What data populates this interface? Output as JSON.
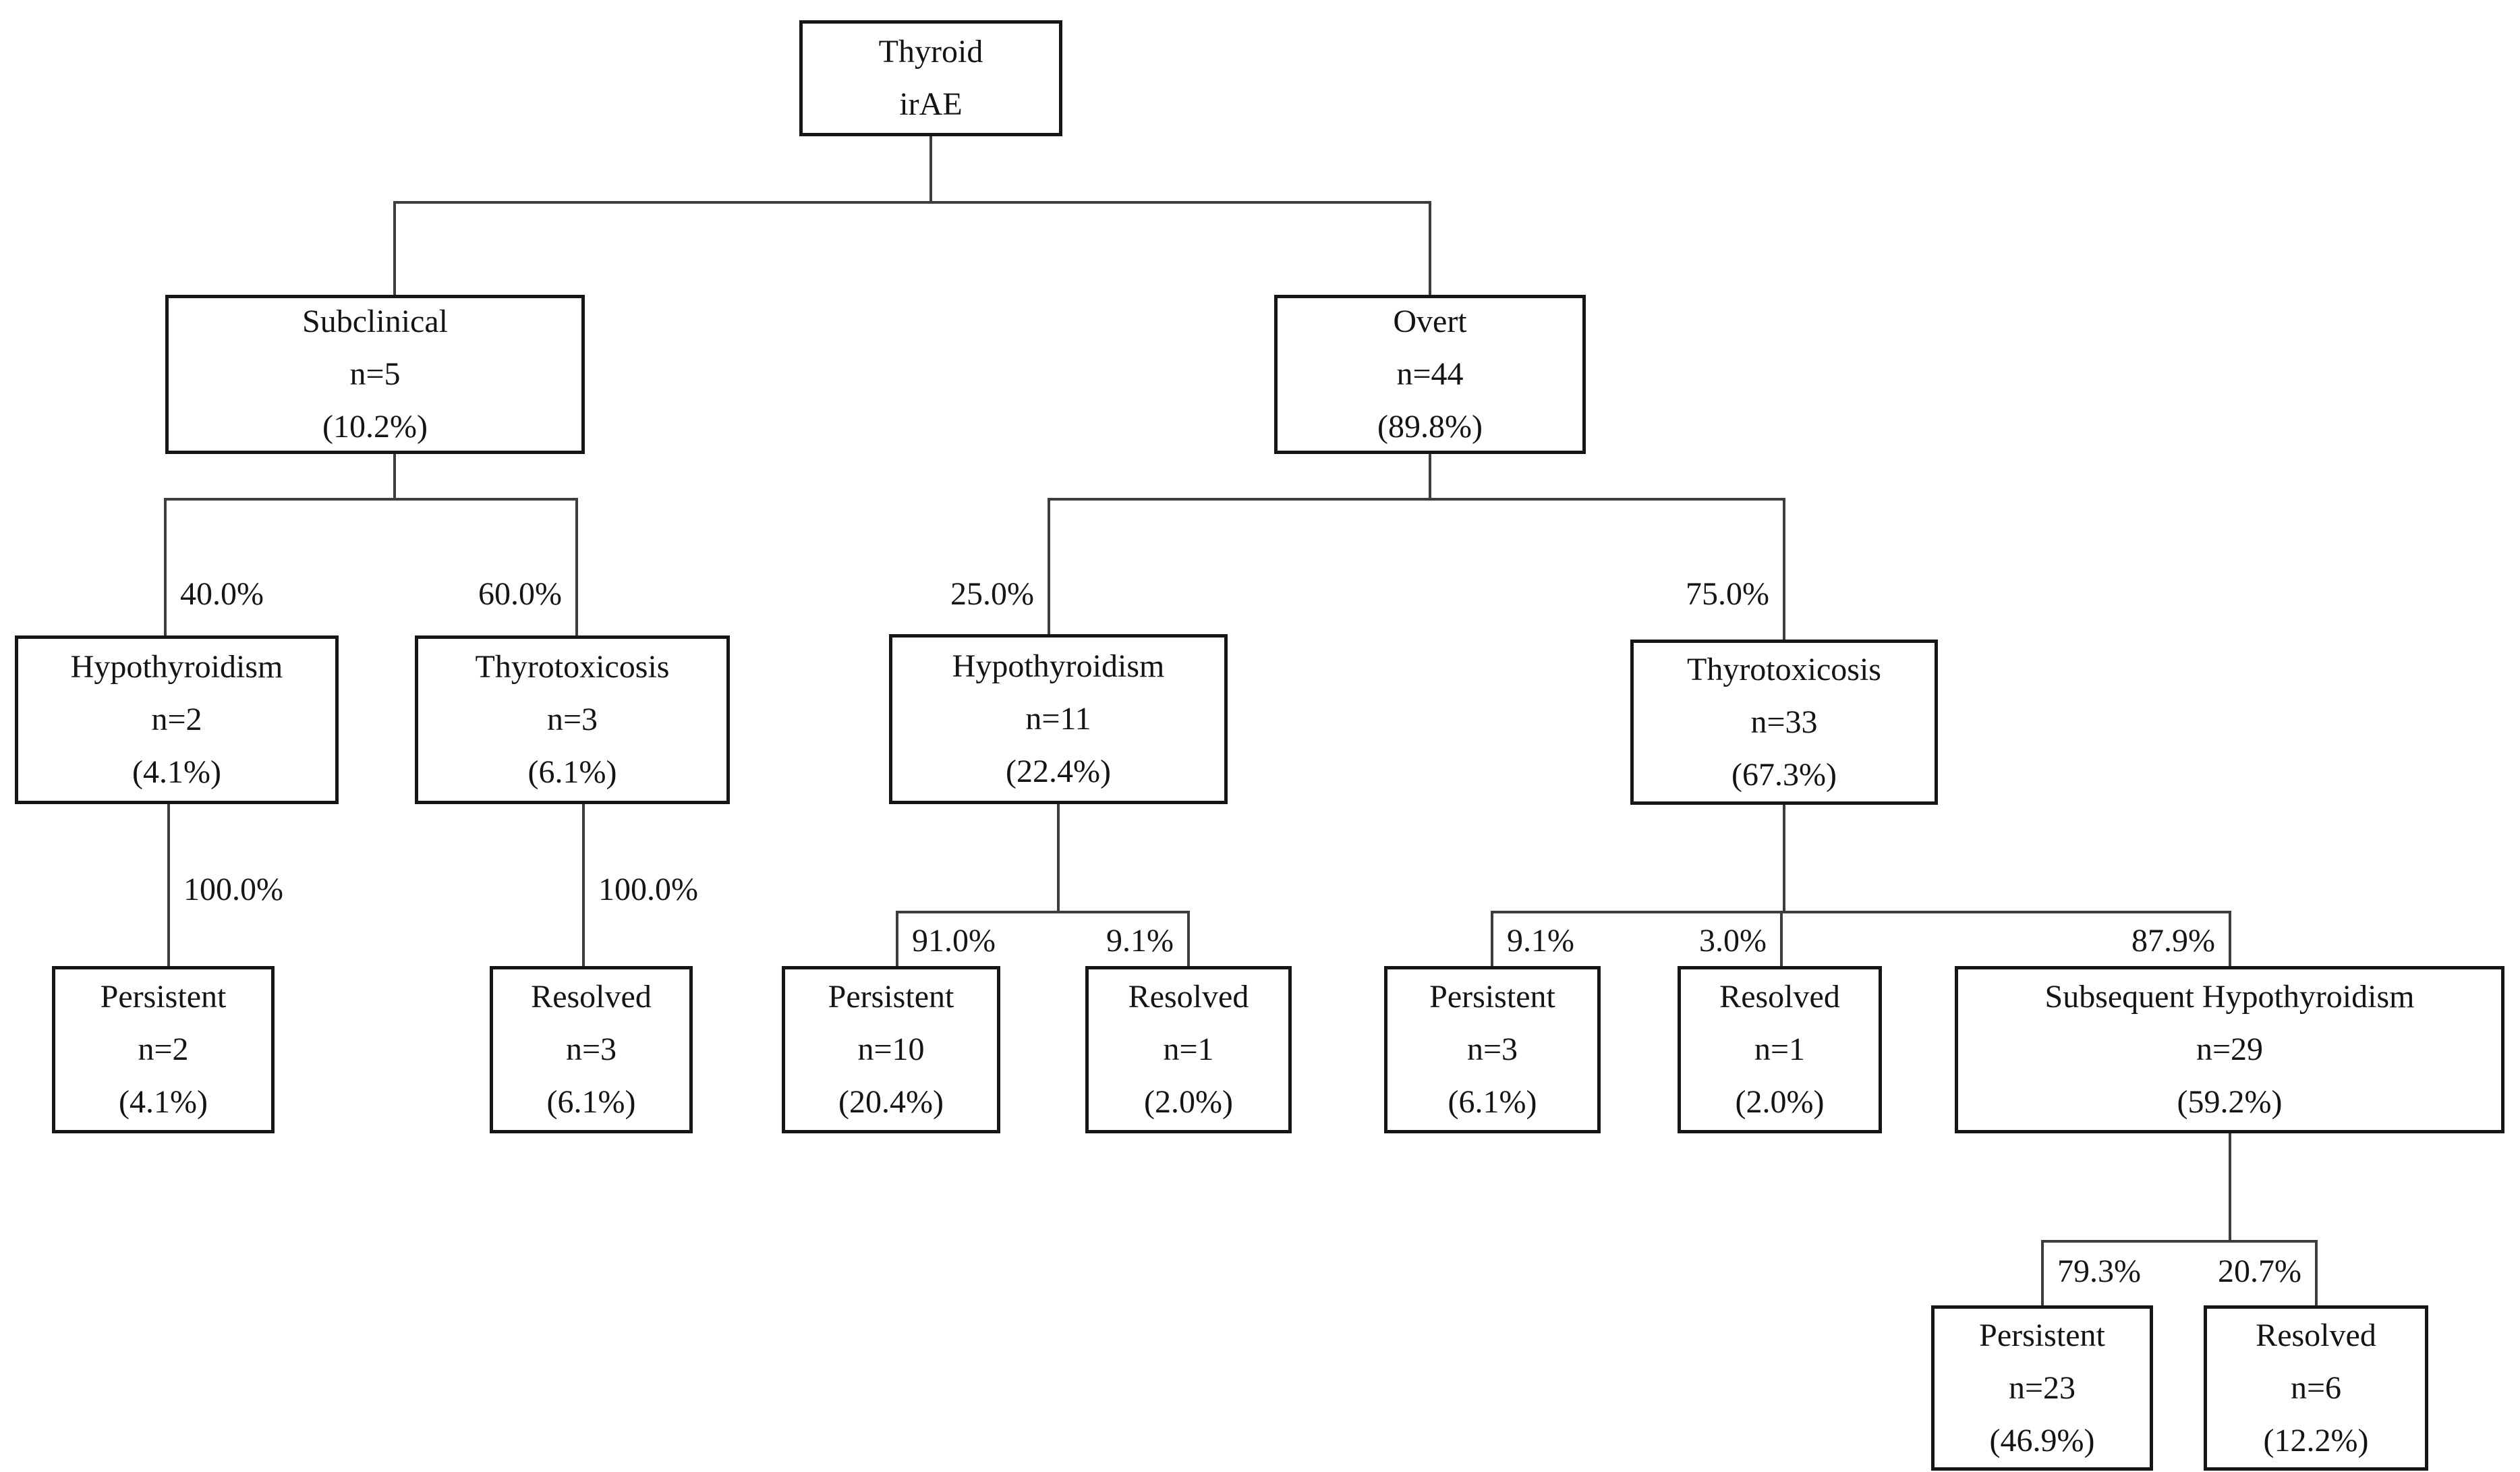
{
  "diagram": {
    "root_label": "Thyroid irAE",
    "nodes": [
      {
        "id": "root",
        "lines": [
          "Thyroid",
          "irAE"
        ]
      },
      {
        "id": "subclinical",
        "lines": [
          "Subclinical",
          "n=5",
          "(10.2%)"
        ]
      },
      {
        "id": "overt",
        "lines": [
          "Overt",
          "n=44",
          "(89.8%)"
        ]
      },
      {
        "id": "sub-hypo",
        "lines": [
          "Hypothyroidism",
          "n=2",
          "(4.1%)"
        ]
      },
      {
        "id": "sub-thyro",
        "lines": [
          "Thyrotoxicosis",
          "n=3",
          "(6.1%)"
        ]
      },
      {
        "id": "overt-hypo",
        "lines": [
          "Hypothyroidism",
          "n=11",
          "(22.4%)"
        ]
      },
      {
        "id": "overt-thyro",
        "lines": [
          "Thyrotoxicosis",
          "n=33",
          "(67.3%)"
        ]
      },
      {
        "id": "p2",
        "lines": [
          "Persistent",
          "n=2",
          "(4.1%)"
        ]
      },
      {
        "id": "r3",
        "lines": [
          "Resolved",
          "n=3",
          "(6.1%)"
        ]
      },
      {
        "id": "p10",
        "lines": [
          "Persistent",
          "n=10",
          "(20.4%)"
        ]
      },
      {
        "id": "r1m",
        "lines": [
          "Resolved",
          "n=1",
          "(2.0%)"
        ]
      },
      {
        "id": "p3",
        "lines": [
          "Persistent",
          "n=3",
          "(6.1%)"
        ]
      },
      {
        "id": "r1r",
        "lines": [
          "Resolved",
          "n=1",
          "(2.0%)"
        ]
      },
      {
        "id": "sh",
        "lines": [
          "Subsequent Hypothyroidism",
          "n=29",
          "(59.2%)"
        ]
      },
      {
        "id": "p23",
        "lines": [
          "Persistent",
          "n=23",
          "(46.9%)"
        ]
      },
      {
        "id": "r6",
        "lines": [
          "Resolved",
          "n=6",
          "(12.2%)"
        ]
      }
    ],
    "edges": [
      {
        "id": "e1",
        "from": "root",
        "children": [
          {
            "node": "subclinical"
          },
          {
            "node": "overt"
          }
        ]
      },
      {
        "id": "e2",
        "from": "subclinical",
        "children": [
          {
            "node": "sub-hypo",
            "pct": "40.0%",
            "side": "right"
          },
          {
            "node": "sub-thyro",
            "pct": "60.0%",
            "side": "left"
          }
        ]
      },
      {
        "id": "e3",
        "from": "overt",
        "children": [
          {
            "node": "overt-hypo",
            "pct": "25.0%",
            "side": "left"
          },
          {
            "node": "overt-thyro",
            "pct": "75.0%",
            "side": "left"
          }
        ]
      },
      {
        "id": "e4",
        "from": "sub-hypo",
        "children": [
          {
            "node": "p2",
            "pct": "100.0%",
            "side": "right"
          }
        ]
      },
      {
        "id": "e5",
        "from": "sub-thyro",
        "children": [
          {
            "node": "r3",
            "pct": "100.0%",
            "side": "right"
          }
        ]
      },
      {
        "id": "e6",
        "from": "overt-hypo",
        "children": [
          {
            "node": "p10",
            "pct": "91.0%",
            "side": "right"
          },
          {
            "node": "r1m",
            "pct": "9.1%",
            "side": "left"
          }
        ]
      },
      {
        "id": "e7",
        "from": "overt-thyro",
        "children": [
          {
            "node": "p3",
            "pct": "9.1%",
            "side": "right"
          },
          {
            "node": "r1r",
            "pct": "3.0%",
            "side": "left"
          },
          {
            "node": "sh",
            "pct": "87.9%",
            "side": "left"
          }
        ]
      },
      {
        "id": "e8",
        "from": "sh",
        "children": [
          {
            "node": "p23",
            "pct": "79.3%",
            "side": "right"
          },
          {
            "node": "r6",
            "pct": "20.7%",
            "side": "left"
          }
        ]
      }
    ]
  }
}
